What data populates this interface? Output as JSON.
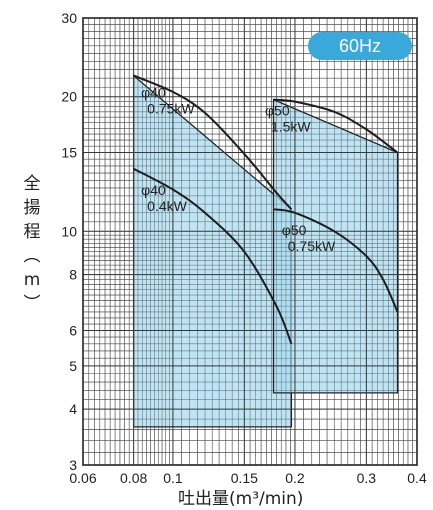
{
  "chart_data": {
    "type": "area",
    "badge": "60Hz",
    "xlabel": "吐出量(m³/min)",
    "ylabel": "全揚程(m)",
    "x_scale": "log",
    "y_scale": "log",
    "xlim": [
      0.06,
      0.4
    ],
    "ylim": [
      3,
      30
    ],
    "x_ticks": [
      0.06,
      0.08,
      0.1,
      0.15,
      0.2,
      0.3,
      0.4
    ],
    "x_tick_labels": [
      "0.06",
      "0.08",
      "0.1",
      "0.15",
      "0.2",
      "0.3",
      "0.4"
    ],
    "y_ticks": [
      3,
      4,
      5,
      6,
      8,
      10,
      15,
      20,
      30
    ],
    "y_tick_labels": [
      "3",
      "4",
      "5",
      "6",
      "8",
      "10",
      "15",
      "20",
      "30"
    ],
    "grid": true,
    "regions": [
      {
        "boundary": [
          [
            0.08,
            3.65
          ],
          [
            0.08,
            22.3
          ],
          [
            0.196,
            11.2
          ],
          [
            0.196,
            3.65
          ]
        ]
      },
      {
        "boundary": [
          [
            0.177,
            4.35
          ],
          [
            0.177,
            19.7
          ],
          [
            0.358,
            15.0
          ],
          [
            0.358,
            4.35
          ]
        ]
      }
    ],
    "curves": [
      {
        "label": [
          "φ40",
          "0.75kW"
        ],
        "points": [
          [
            0.08,
            22.3
          ],
          [
            0.1,
            20.5
          ],
          [
            0.12,
            18.4
          ],
          [
            0.15,
            14.9
          ],
          [
            0.18,
            12.2
          ],
          [
            0.196,
            11.2
          ]
        ]
      },
      {
        "label": [
          "φ40",
          "0.4kW"
        ],
        "points": [
          [
            0.08,
            13.8
          ],
          [
            0.1,
            12.4
          ],
          [
            0.12,
            11.0
          ],
          [
            0.15,
            9.0
          ],
          [
            0.18,
            6.8
          ],
          [
            0.196,
            5.6
          ]
        ]
      },
      {
        "label": [
          "φ50",
          "1.5kW"
        ],
        "points": [
          [
            0.177,
            19.7
          ],
          [
            0.2,
            19.5
          ],
          [
            0.25,
            18.5
          ],
          [
            0.3,
            16.9
          ],
          [
            0.358,
            15.0
          ]
        ]
      },
      {
        "label": [
          "φ50",
          "0.75kW"
        ],
        "points": [
          [
            0.177,
            11.2
          ],
          [
            0.2,
            11.0
          ],
          [
            0.25,
            10.0
          ],
          [
            0.3,
            8.8
          ],
          [
            0.33,
            7.8
          ],
          [
            0.358,
            6.6
          ]
        ]
      }
    ]
  }
}
